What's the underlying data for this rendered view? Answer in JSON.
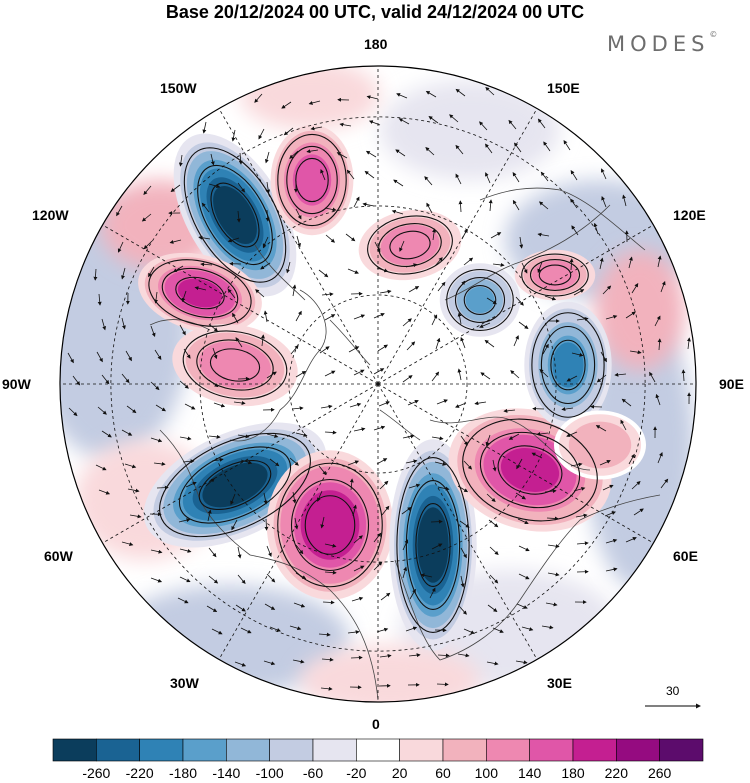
{
  "title": "Base 20/12/2024 00 UTC, valid 24/12/2024 00 UTC",
  "brand": "MODES",
  "brand_mark": "©",
  "lon_labels": {
    "top": "180",
    "bottom": "0",
    "left": "90W",
    "right": "90E",
    "upper_left_1": "150W",
    "upper_left_2": "120W",
    "lower_left_1": "60W",
    "lower_left_2": "30W",
    "upper_right_1": "150E",
    "upper_right_2": "120E",
    "lower_right_1": "60E",
    "lower_right_2": "30E"
  },
  "vector_scale": {
    "value": "30"
  },
  "colorbar": {
    "colors": [
      "#0b3d5c",
      "#1a6393",
      "#2f82b5",
      "#5a9fcb",
      "#91b7d8",
      "#c3cce2",
      "#e6e5f0",
      "#ffffff",
      "#f9d9dc",
      "#f2b2bd",
      "#ee88b1",
      "#e056a8",
      "#c41f91",
      "#950b80",
      "#5c0c6c"
    ],
    "labels": [
      "-260",
      "-220",
      "-180",
      "-140",
      "-100",
      "-60",
      "-20",
      "20",
      "60",
      "100",
      "140",
      "180",
      "220",
      "260"
    ]
  },
  "anomaly_centers": [
    {
      "sign": "neg",
      "value": -260
    },
    {
      "sign": "pos",
      "value": 200
    },
    {
      "sign": "pos",
      "value": 180
    },
    {
      "sign": "pos",
      "value": 140
    },
    {
      "sign": "pos",
      "value": 140
    },
    {
      "sign": "neg",
      "value": -260
    },
    {
      "sign": "pos",
      "value": 220
    },
    {
      "sign": "neg",
      "value": -280
    },
    {
      "sign": "pos",
      "value": 200
    },
    {
      "sign": "neg",
      "value": -180
    },
    {
      "sign": "neg",
      "value": -140
    },
    {
      "sign": "pos",
      "value": 140
    },
    {
      "sign": "pos",
      "value": 100
    }
  ]
}
